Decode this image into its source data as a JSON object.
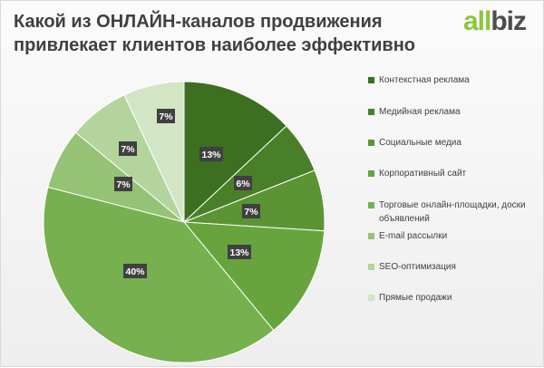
{
  "title": "Какой из ОНЛАЙН-каналов продвижения\nпривлекает клиентов наиболее эффективно",
  "logo": {
    "part1": "all",
    "part2": "biz"
  },
  "chart_data": {
    "type": "pie",
    "title": "Какой из ОНЛАЙН-каналов продвижения привлекает клиентов наиболее эффективно",
    "categories": [
      "Контекстная реклама",
      "Медийная реклама",
      "Социальные медиа",
      "Корпоративный сайт",
      "Торговые онлайн-площадки, доски объявлений",
      "E-mail рассылки",
      "SEO-оптимизация",
      "Прямые продажи"
    ],
    "values": [
      13,
      6,
      7,
      13,
      40,
      7,
      7,
      7
    ],
    "data_labels": [
      "13%",
      "6%",
      "7%",
      "13%",
      "40%",
      "7%",
      "7%",
      "7%"
    ],
    "colors": [
      "#3c6f1f",
      "#4a7f2a",
      "#5b9433",
      "#68a43d",
      "#77b04f",
      "#95c275",
      "#b4d49d",
      "#d2e5c4"
    ],
    "legend_position": "right"
  }
}
